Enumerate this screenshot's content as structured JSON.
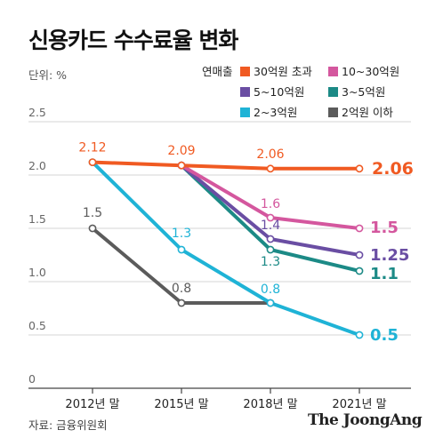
{
  "title": "신용카드 수수료율 변화",
  "unit_label": "단위: %",
  "legend_title": "연매출",
  "source": "자료: 금융위원회",
  "logo": "The JoongAng",
  "chart_data": {
    "type": "line",
    "title": "신용카드 수수료율 변화",
    "unit": "%",
    "categories": [
      "2012년 말",
      "2015년 말",
      "2018년 말",
      "2021년 말"
    ],
    "ylim": [
      0,
      2.5
    ],
    "yticks": [
      "0",
      "0.5",
      "1.0",
      "1.5",
      "2.0",
      "2.5"
    ],
    "grid": true,
    "legend_position": "top-right",
    "series": [
      {
        "name": "30억원 초과",
        "color": "#f05a22",
        "values": [
          2.12,
          2.09,
          2.06,
          2.06
        ],
        "labels": [
          "2.12",
          "2.09",
          "2.06",
          "2.06"
        ]
      },
      {
        "name": "10~30억원",
        "color": "#d4579e",
        "values": [
          null,
          2.09,
          1.6,
          1.5
        ],
        "labels": [
          "",
          "",
          "1.6",
          "1.5"
        ]
      },
      {
        "name": "5~10억원",
        "color": "#6a4ea3",
        "values": [
          null,
          2.09,
          1.4,
          1.25
        ],
        "labels": [
          "",
          "",
          "1.4",
          "1.25"
        ]
      },
      {
        "name": "3~5억원",
        "color": "#1c8a86",
        "values": [
          null,
          2.09,
          1.3,
          1.1
        ],
        "labels": [
          "",
          "",
          "1.3",
          "1.1"
        ]
      },
      {
        "name": "2~3억원",
        "color": "#1fb3d6",
        "values": [
          2.12,
          1.3,
          0.8,
          0.5
        ],
        "labels": [
          "",
          "1.3",
          "0.8",
          "0.5"
        ]
      },
      {
        "name": "2억원 이하",
        "color": "#5b5b5b",
        "values": [
          1.5,
          0.8,
          0.8,
          null
        ],
        "labels": [
          "1.5",
          "0.8",
          "",
          ""
        ]
      }
    ]
  }
}
